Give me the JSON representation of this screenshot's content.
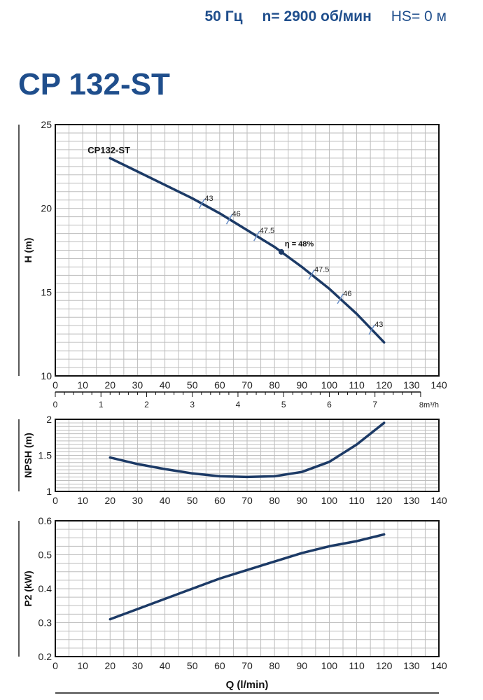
{
  "header": {
    "freq": "50 Гц",
    "speed": "n= 2900 об/мин",
    "hs": "HS= 0 м"
  },
  "title": "CP 132-ST",
  "colors": {
    "brand": "#1f4e8c",
    "curve": "#1c3a66",
    "grid": "#bdbdbd",
    "marker": "#6a8fc7"
  },
  "chart_data": [
    {
      "type": "line",
      "name": "head",
      "ylabel": "H (m)",
      "xlim": [
        0,
        140
      ],
      "ylim": [
        10,
        25
      ],
      "yticks": [
        10,
        15,
        20,
        25
      ],
      "xticks": [
        0,
        10,
        20,
        30,
        40,
        50,
        60,
        70,
        80,
        90,
        100,
        110,
        120,
        130,
        140
      ],
      "series": [
        {
          "name": "CP132-ST",
          "x": [
            20,
            30,
            40,
            50,
            60,
            70,
            80,
            82.5,
            90,
            100,
            110,
            120
          ],
          "y": [
            23,
            22.2,
            21.4,
            20.6,
            19.7,
            18.7,
            17.7,
            17.4,
            16.5,
            15.2,
            13.7,
            12.0
          ]
        }
      ],
      "efficiency_marks": [
        {
          "q": 53.5,
          "label": "43"
        },
        {
          "q": 63.5,
          "label": "46"
        },
        {
          "q": 73.5,
          "label": "47.5"
        },
        {
          "q": 93.5,
          "label": "47.5"
        },
        {
          "q": 104,
          "label": "46"
        },
        {
          "q": 115.5,
          "label": "43"
        }
      ],
      "best_point": {
        "q": 82.5,
        "h": 17.4,
        "label": "η = 48%"
      },
      "secondary_axis": {
        "unit": "8m³/h",
        "ticks": [
          0,
          1,
          2,
          3,
          4,
          5,
          6,
          7
        ]
      }
    },
    {
      "type": "line",
      "name": "npsh",
      "ylabel": "NPSH (m)",
      "xlim": [
        0,
        140
      ],
      "ylim": [
        1,
        2
      ],
      "yticks": [
        1,
        1.5,
        2
      ],
      "xticks": [
        0,
        10,
        20,
        30,
        40,
        50,
        60,
        70,
        80,
        90,
        100,
        110,
        120,
        130,
        140
      ],
      "series": [
        {
          "name": "NPSH",
          "x": [
            20,
            30,
            40,
            50,
            60,
            70,
            80,
            90,
            100,
            110,
            120
          ],
          "y": [
            1.47,
            1.38,
            1.31,
            1.25,
            1.21,
            1.2,
            1.21,
            1.27,
            1.41,
            1.65,
            1.95
          ]
        }
      ]
    },
    {
      "type": "line",
      "name": "power",
      "ylabel": "P2 (kW)",
      "xlabel": "Q (l/min)",
      "xlim": [
        0,
        140
      ],
      "ylim": [
        0.2,
        0.6
      ],
      "yticks": [
        0.2,
        0.3,
        0.4,
        0.5,
        0.6
      ],
      "xticks": [
        0,
        10,
        20,
        30,
        40,
        50,
        60,
        70,
        80,
        90,
        100,
        110,
        120,
        130,
        140
      ],
      "series": [
        {
          "name": "P2",
          "x": [
            20,
            30,
            40,
            50,
            60,
            70,
            80,
            90,
            100,
            110,
            120
          ],
          "y": [
            0.31,
            0.34,
            0.37,
            0.4,
            0.43,
            0.455,
            0.48,
            0.505,
            0.525,
            0.54,
            0.56
          ]
        }
      ]
    }
  ]
}
